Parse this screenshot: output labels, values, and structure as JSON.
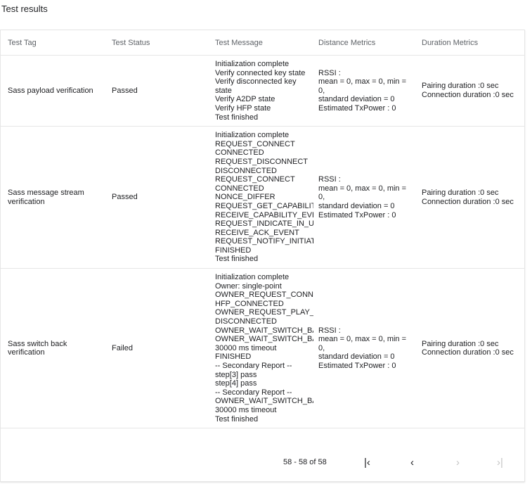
{
  "title": "Test results",
  "columns": [
    "Test Tag",
    "Test Status",
    "Test Message",
    "Distance Metrics",
    "Duration Metrics"
  ],
  "rows": [
    {
      "tag": "Sass payload verification",
      "status": "Passed",
      "message": [
        "Initialization complete",
        "Verify connected key state",
        "Verify disconnected key state",
        "Verify A2DP state",
        "Verify HFP state",
        "Test finished"
      ],
      "distance": [
        "RSSI :",
        "mean = 0, max = 0, min = 0,",
        "standard deviation = 0",
        "Estimated TxPower : 0"
      ],
      "duration": [
        "Pairing duration :0 sec",
        "Connection duration :0 sec"
      ]
    },
    {
      "tag": "Sass message stream verification",
      "status": "Passed",
      "message": [
        "Initialization complete",
        "REQUEST_CONNECT",
        "CONNECTED",
        "REQUEST_DISCONNECT",
        "DISCONNECTED",
        "REQUEST_CONNECT",
        "CONNECTED",
        "NONCE_DIFFER",
        "REQUEST_GET_CAPABILITY",
        "RECEIVE_CAPABILITY_EVENT",
        "REQUEST_INDICATE_IN_USE_",
        "RECEIVE_ACK_EVENT",
        "REQUEST_NOTIFY_INITIATED_",
        "FINISHED",
        "Test finished"
      ],
      "distance": [
        "RSSI :",
        "mean = 0, max = 0, min = 0,",
        "standard deviation = 0",
        "Estimated TxPower : 0"
      ],
      "duration": [
        "Pairing duration :0 sec",
        "Connection duration :0 sec"
      ]
    },
    {
      "tag": "Sass switch back verification",
      "status": "Failed",
      "message": [
        "Initialization complete",
        "Owner: single-point",
        "OWNER_REQUEST_CONNECT",
        "HFP_CONNECTED",
        "OWNER_REQUEST_PLAY_MEDIA",
        "DISCONNECTED",
        "OWNER_WAIT_SWITCH_BACK",
        "OWNER_WAIT_SWITCH_BACK",
        "30000 ms timeout",
        "FINISHED",
        "-- Secondary Report --",
        "step[3] pass",
        "step[4] pass",
        "-- Secondary Report --",
        "OWNER_WAIT_SWITCH_BACK",
        "30000 ms timeout",
        "Test finished"
      ],
      "distance": [
        "RSSI :",
        "mean = 0, max = 0, min = 0,",
        "standard deviation = 0",
        "Estimated TxPower : 0"
      ],
      "duration": [
        "Pairing duration :0 sec",
        "Connection duration :0 sec"
      ]
    }
  ],
  "pagination": {
    "range": "58 - 58 of 58",
    "first_icon": "first-page-icon",
    "prev_icon": "chevron-left-icon",
    "next_icon": "chevron-right-icon",
    "last_icon": "last-page-icon"
  }
}
